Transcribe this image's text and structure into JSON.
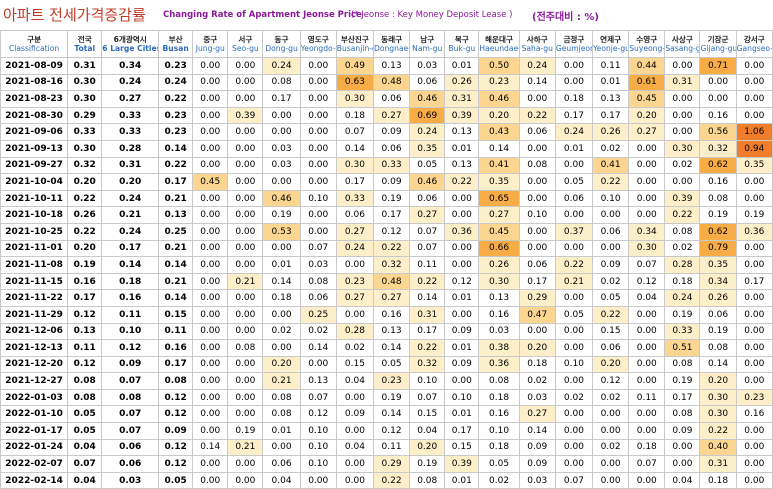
{
  "title": {
    "ko": "아파트 전세가격증감률",
    "en": "Changing Rate of Apartment Jeonse Price",
    "note": "(* Jeonse : Key Money Deposit Lease )",
    "unit": "(전주대비 : %)"
  },
  "colors": {
    "level1": "#fdefc9",
    "level2": "#fcd690",
    "level3": "#f8ac45",
    "level4": "#f07d2a"
  },
  "columns": [
    {
      "ko": "구분",
      "en": "Classification"
    },
    {
      "ko": "전국",
      "en": "Total"
    },
    {
      "ko": "6개광역시",
      "en": "6 Large Cities"
    },
    {
      "ko": "부산",
      "en": "Busan"
    },
    {
      "ko": "중구",
      "en": "Jung-gu"
    },
    {
      "ko": "서구",
      "en": "Seo-gu"
    },
    {
      "ko": "동구",
      "en": "Dong-gu"
    },
    {
      "ko": "영도구",
      "en": "Yeongdo-gu"
    },
    {
      "ko": "부산진구",
      "en": "Busanjin-gu"
    },
    {
      "ko": "동래구",
      "en": "Dongnae-gu"
    },
    {
      "ko": "남구",
      "en": "Nam-gu"
    },
    {
      "ko": "북구",
      "en": "Buk-gu"
    },
    {
      "ko": "해운대구",
      "en": "Haeundae-gu"
    },
    {
      "ko": "사하구",
      "en": "Saha-gu"
    },
    {
      "ko": "금정구",
      "en": "Geumjeong-gu"
    },
    {
      "ko": "연제구",
      "en": "Yeonje-gu"
    },
    {
      "ko": "수영구",
      "en": "Suyeong-gu"
    },
    {
      "ko": "사상구",
      "en": "Sasang-gu"
    },
    {
      "ko": "기장군",
      "en": "Gijang-gun"
    },
    {
      "ko": "강서구",
      "en": "Gangseo-gu"
    }
  ],
  "rows": [
    {
      "date": "2021-08-09",
      "values": [
        "0.31",
        "0.34",
        "0.23",
        "0.00",
        "0.00",
        "0.24",
        "0.00",
        "0.49",
        "0.13",
        "0.03",
        "0.01",
        "0.50",
        "0.24",
        "0.00",
        "0.11",
        "0.44",
        "0.00",
        "0.71",
        "0.00"
      ]
    },
    {
      "date": "2021-08-16",
      "values": [
        "0.30",
        "0.24",
        "0.24",
        "0.00",
        "0.00",
        "0.08",
        "0.00",
        "0.63",
        "0.48",
        "0.06",
        "0.26",
        "0.23",
        "0.14",
        "0.00",
        "0.01",
        "0.61",
        "0.31",
        "0.00",
        "0.00"
      ]
    },
    {
      "date": "2021-08-23",
      "values": [
        "0.30",
        "0.27",
        "0.22",
        "0.00",
        "0.00",
        "0.17",
        "0.00",
        "0.30",
        "0.06",
        "0.46",
        "0.31",
        "0.46",
        "0.00",
        "0.18",
        "0.13",
        "0.45",
        "0.00",
        "0.00",
        "0.00"
      ]
    },
    {
      "date": "2021-08-30",
      "values": [
        "0.29",
        "0.33",
        "0.23",
        "0.00",
        "0.39",
        "0.00",
        "0.00",
        "0.18",
        "0.27",
        "0.69",
        "0.39",
        "0.20",
        "0.22",
        "0.17",
        "0.17",
        "0.20",
        "0.00",
        "0.16",
        "0.00"
      ]
    },
    {
      "date": "2021-09-06",
      "values": [
        "0.33",
        "0.33",
        "0.23",
        "0.00",
        "0.00",
        "0.00",
        "0.00",
        "0.07",
        "0.09",
        "0.24",
        "0.13",
        "0.43",
        "0.06",
        "0.24",
        "0.26",
        "0.27",
        "0.00",
        "0.56",
        "1.06"
      ]
    },
    {
      "date": "2021-09-13",
      "values": [
        "0.30",
        "0.28",
        "0.14",
        "0.00",
        "0.00",
        "0.03",
        "0.00",
        "0.14",
        "0.06",
        "0.35",
        "0.01",
        "0.14",
        "0.00",
        "0.01",
        "0.02",
        "0.00",
        "0.30",
        "0.32",
        "0.94"
      ]
    },
    {
      "date": "2021-09-27",
      "values": [
        "0.32",
        "0.31",
        "0.22",
        "0.00",
        "0.00",
        "0.03",
        "0.00",
        "0.30",
        "0.33",
        "0.05",
        "0.13",
        "0.41",
        "0.08",
        "0.00",
        "0.41",
        "0.00",
        "0.02",
        "0.62",
        "0.35"
      ]
    },
    {
      "date": "2021-10-04",
      "values": [
        "0.20",
        "0.20",
        "0.17",
        "0.45",
        "0.00",
        "0.00",
        "0.00",
        "0.17",
        "0.09",
        "0.46",
        "0.22",
        "0.35",
        "0.00",
        "0.05",
        "0.22",
        "0.00",
        "0.00",
        "0.16",
        "0.00"
      ]
    },
    {
      "date": "2021-10-11",
      "values": [
        "0.22",
        "0.24",
        "0.21",
        "0.00",
        "0.00",
        "0.46",
        "0.10",
        "0.33",
        "0.19",
        "0.06",
        "0.00",
        "0.65",
        "0.00",
        "0.06",
        "0.10",
        "0.00",
        "0.39",
        "0.08",
        "0.00"
      ]
    },
    {
      "date": "2021-10-18",
      "values": [
        "0.26",
        "0.21",
        "0.13",
        "0.00",
        "0.00",
        "0.19",
        "0.00",
        "0.06",
        "0.17",
        "0.27",
        "0.00",
        "0.27",
        "0.10",
        "0.00",
        "0.00",
        "0.00",
        "0.22",
        "0.19",
        "0.19"
      ]
    },
    {
      "date": "2021-10-25",
      "values": [
        "0.22",
        "0.24",
        "0.25",
        "0.00",
        "0.00",
        "0.53",
        "0.00",
        "0.27",
        "0.12",
        "0.07",
        "0.36",
        "0.45",
        "0.00",
        "0.37",
        "0.06",
        "0.34",
        "0.08",
        "0.62",
        "0.36"
      ]
    },
    {
      "date": "2021-11-01",
      "values": [
        "0.20",
        "0.17",
        "0.21",
        "0.00",
        "0.00",
        "0.00",
        "0.07",
        "0.24",
        "0.22",
        "0.07",
        "0.00",
        "0.66",
        "0.00",
        "0.00",
        "0.00",
        "0.30",
        "0.02",
        "0.79",
        "0.00"
      ]
    },
    {
      "date": "2021-11-08",
      "values": [
        "0.19",
        "0.14",
        "0.14",
        "0.00",
        "0.00",
        "0.01",
        "0.03",
        "0.00",
        "0.32",
        "0.11",
        "0.00",
        "0.26",
        "0.06",
        "0.22",
        "0.09",
        "0.07",
        "0.28",
        "0.35",
        "0.00"
      ]
    },
    {
      "date": "2021-11-15",
      "values": [
        "0.16",
        "0.18",
        "0.21",
        "0.00",
        "0.21",
        "0.14",
        "0.08",
        "0.23",
        "0.48",
        "0.22",
        "0.12",
        "0.30",
        "0.17",
        "0.21",
        "0.02",
        "0.12",
        "0.18",
        "0.34",
        "0.17"
      ]
    },
    {
      "date": "2021-11-22",
      "values": [
        "0.17",
        "0.16",
        "0.14",
        "0.00",
        "0.00",
        "0.18",
        "0.06",
        "0.27",
        "0.27",
        "0.14",
        "0.01",
        "0.13",
        "0.29",
        "0.00",
        "0.05",
        "0.04",
        "0.24",
        "0.26",
        "0.00"
      ]
    },
    {
      "date": "2021-11-29",
      "values": [
        "0.12",
        "0.11",
        "0.15",
        "0.00",
        "0.00",
        "0.00",
        "0.25",
        "0.00",
        "0.16",
        "0.31",
        "0.00",
        "0.16",
        "0.47",
        "0.05",
        "0.22",
        "0.00",
        "0.19",
        "0.06",
        "0.00"
      ]
    },
    {
      "date": "2021-12-06",
      "values": [
        "0.13",
        "0.10",
        "0.11",
        "0.00",
        "0.00",
        "0.02",
        "0.02",
        "0.28",
        "0.13",
        "0.17",
        "0.09",
        "0.03",
        "0.00",
        "0.00",
        "0.15",
        "0.00",
        "0.33",
        "0.19",
        "0.00"
      ]
    },
    {
      "date": "2021-12-13",
      "values": [
        "0.11",
        "0.12",
        "0.16",
        "0.00",
        "0.08",
        "0.00",
        "0.14",
        "0.02",
        "0.14",
        "0.22",
        "0.01",
        "0.38",
        "0.20",
        "0.00",
        "0.06",
        "0.00",
        "0.51",
        "0.08",
        "0.00"
      ]
    },
    {
      "date": "2021-12-20",
      "values": [
        "0.12",
        "0.09",
        "0.17",
        "0.00",
        "0.00",
        "0.20",
        "0.00",
        "0.15",
        "0.05",
        "0.32",
        "0.09",
        "0.36",
        "0.18",
        "0.10",
        "0.20",
        "0.00",
        "0.08",
        "0.14",
        "0.00"
      ]
    },
    {
      "date": "2021-12-27",
      "values": [
        "0.08",
        "0.07",
        "0.08",
        "0.00",
        "0.00",
        "0.21",
        "0.13",
        "0.04",
        "0.23",
        "0.10",
        "0.00",
        "0.08",
        "0.02",
        "0.00",
        "0.12",
        "0.00",
        "0.19",
        "0.20",
        "0.00"
      ]
    },
    {
      "date": "2022-01-03",
      "values": [
        "0.08",
        "0.08",
        "0.12",
        "0.00",
        "0.00",
        "0.08",
        "0.07",
        "0.00",
        "0.19",
        "0.07",
        "0.10",
        "0.18",
        "0.03",
        "0.02",
        "0.02",
        "0.11",
        "0.17",
        "0.30",
        "0.23"
      ]
    },
    {
      "date": "2022-01-10",
      "values": [
        "0.05",
        "0.07",
        "0.12",
        "0.00",
        "0.00",
        "0.08",
        "0.12",
        "0.09",
        "0.14",
        "0.15",
        "0.01",
        "0.16",
        "0.27",
        "0.00",
        "0.00",
        "0.00",
        "0.08",
        "0.30",
        "0.16"
      ]
    },
    {
      "date": "2022-01-17",
      "values": [
        "0.05",
        "0.07",
        "0.09",
        "0.00",
        "0.19",
        "0.01",
        "0.10",
        "0.00",
        "0.12",
        "0.04",
        "0.17",
        "0.10",
        "0.14",
        "0.00",
        "0.00",
        "0.00",
        "0.09",
        "0.22",
        "0.00"
      ]
    },
    {
      "date": "2022-01-24",
      "values": [
        "0.04",
        "0.06",
        "0.12",
        "0.14",
        "0.21",
        "0.00",
        "0.10",
        "0.04",
        "0.11",
        "0.20",
        "0.15",
        "0.18",
        "0.09",
        "0.00",
        "0.02",
        "0.18",
        "0.00",
        "0.40",
        "0.00"
      ]
    },
    {
      "date": "2022-02-07",
      "values": [
        "0.07",
        "0.06",
        "0.12",
        "0.00",
        "0.00",
        "0.06",
        "0.10",
        "0.00",
        "0.29",
        "0.19",
        "0.39",
        "0.05",
        "0.09",
        "0.00",
        "0.00",
        "0.07",
        "0.00",
        "0.31",
        "0.00"
      ]
    },
    {
      "date": "2022-02-14",
      "values": [
        "0.04",
        "0.03",
        "0.05",
        "0.00",
        "0.00",
        "0.04",
        "0.00",
        "0.00",
        "0.22",
        "0.08",
        "0.01",
        "0.02",
        "0.03",
        "0.07",
        "0.00",
        "0.00",
        "0.04",
        "0.18",
        "0.00"
      ]
    }
  ]
}
